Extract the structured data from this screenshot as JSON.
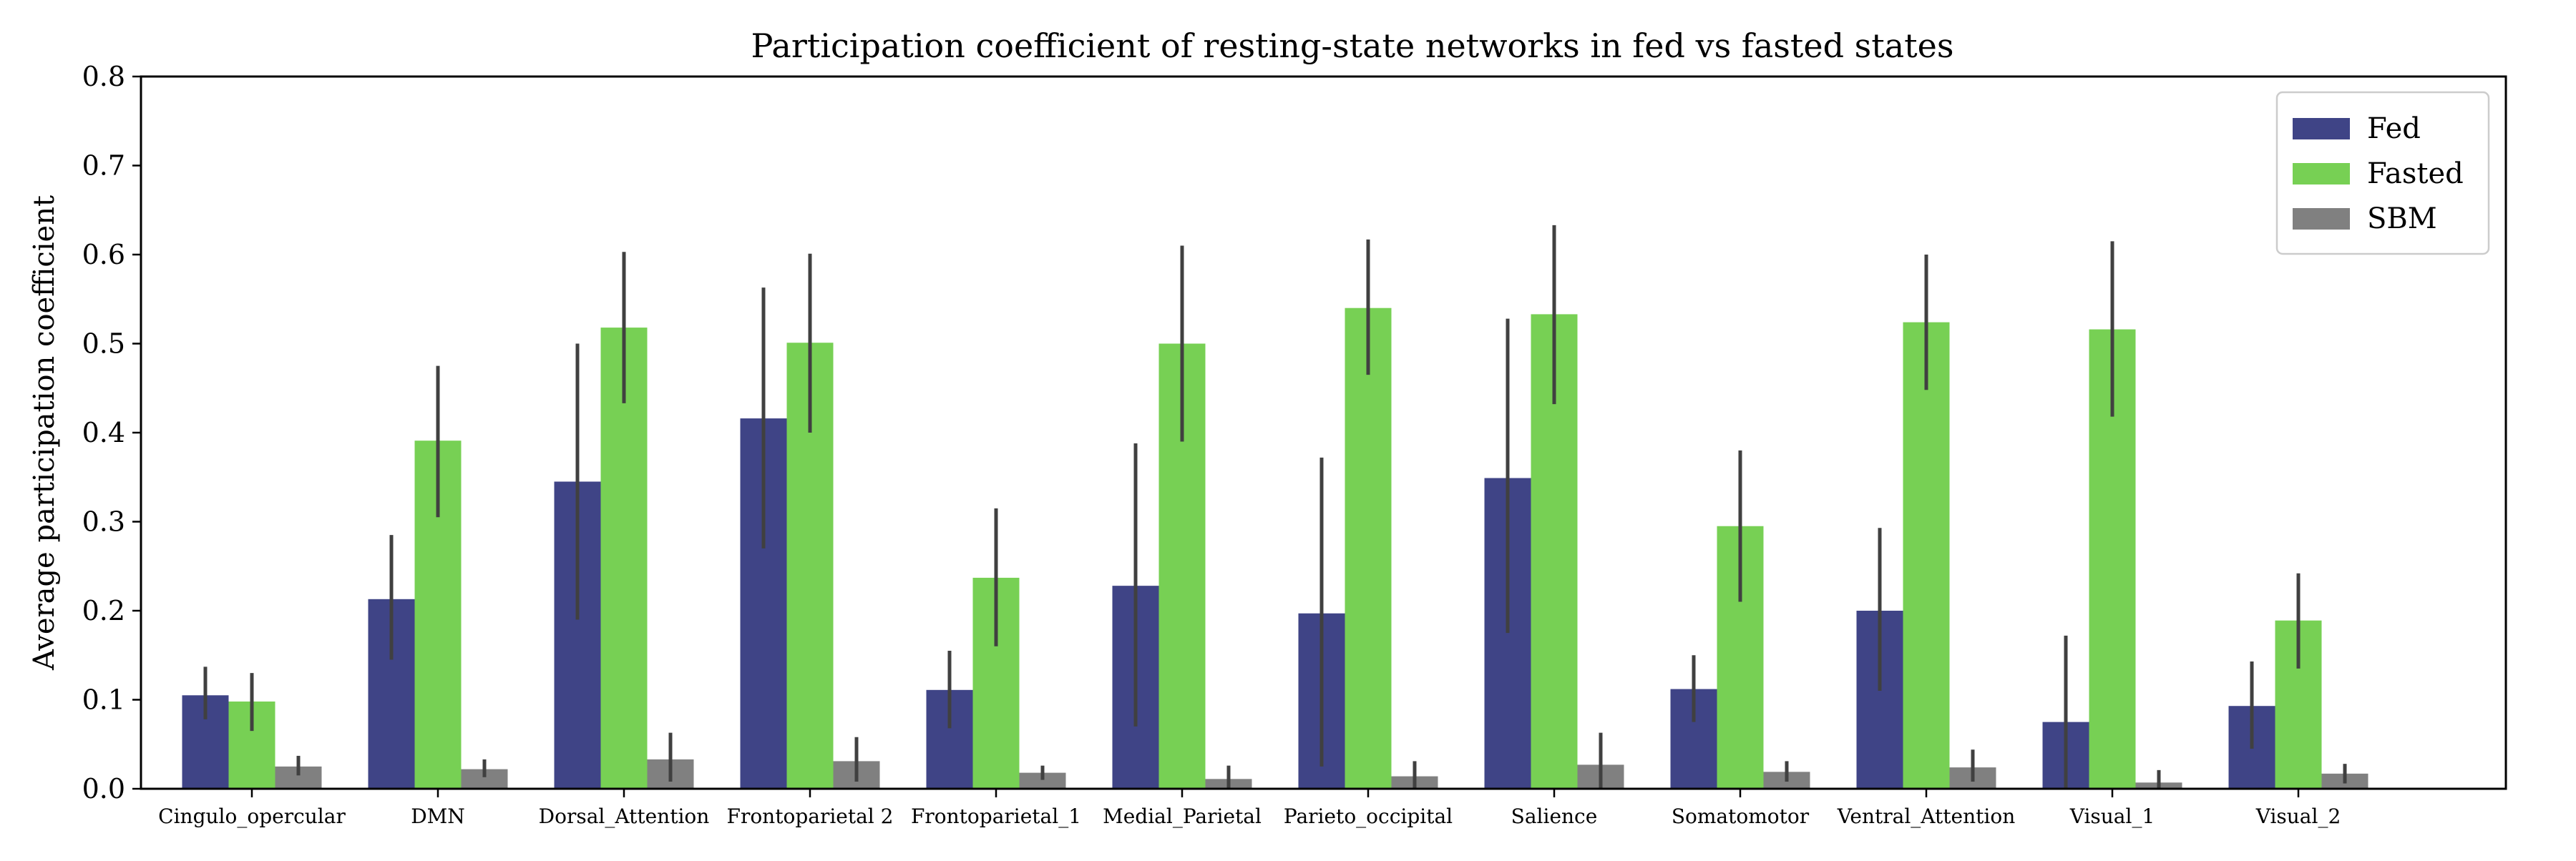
{
  "chart_data": {
    "type": "bar",
    "title": "Participation coefficient of resting-state networks in fed vs fasted states",
    "xlabel": "",
    "ylabel": "Average participation coefficient",
    "ylim": [
      0,
      0.8
    ],
    "yticks": [
      "0.0",
      "0.1",
      "0.2",
      "0.3",
      "0.4",
      "0.5",
      "0.6",
      "0.7",
      "0.8"
    ],
    "grid": false,
    "legend_position": "top-right",
    "categories": [
      "Cingulo_opercular",
      "DMN",
      "Dorsal_Attention",
      "Frontoparietal 2",
      "Frontoparietal_1",
      "Medial_Parietal",
      "Parieto_occipital",
      "Salience",
      "Somatomotor",
      "Ventral_Attention",
      "Visual_1",
      "Visual_2"
    ],
    "series": [
      {
        "name": "Fed",
        "color": "#3f4486",
        "values": [
          0.105,
          0.213,
          0.345,
          0.416,
          0.111,
          0.228,
          0.197,
          0.349,
          0.112,
          0.2,
          0.075,
          0.093
        ],
        "err_low": [
          0.078,
          0.145,
          0.19,
          0.27,
          0.068,
          0.07,
          0.025,
          0.175,
          0.075,
          0.11,
          0.0,
          0.045
        ],
        "err_high": [
          0.137,
          0.285,
          0.5,
          0.563,
          0.155,
          0.388,
          0.372,
          0.528,
          0.15,
          0.293,
          0.172,
          0.143
        ]
      },
      {
        "name": "Fasted",
        "color": "#77d054",
        "values": [
          0.098,
          0.391,
          0.518,
          0.501,
          0.237,
          0.5,
          0.54,
          0.533,
          0.295,
          0.524,
          0.516,
          0.189
        ],
        "err_low": [
          0.065,
          0.305,
          0.433,
          0.4,
          0.16,
          0.39,
          0.465,
          0.432,
          0.21,
          0.448,
          0.418,
          0.135
        ],
        "err_high": [
          0.13,
          0.475,
          0.603,
          0.601,
          0.315,
          0.61,
          0.617,
          0.633,
          0.38,
          0.6,
          0.615,
          0.242
        ]
      },
      {
        "name": "SBM",
        "color": "#808080",
        "values": [
          0.025,
          0.022,
          0.033,
          0.031,
          0.018,
          0.011,
          0.014,
          0.027,
          0.019,
          0.024,
          0.007,
          0.017
        ],
        "err_low": [
          0.015,
          0.013,
          0.008,
          0.008,
          0.01,
          0.0,
          0.0,
          0.0,
          0.008,
          0.008,
          0.0,
          0.006
        ],
        "err_high": [
          0.037,
          0.033,
          0.063,
          0.058,
          0.026,
          0.026,
          0.031,
          0.063,
          0.031,
          0.044,
          0.021,
          0.028
        ]
      }
    ]
  }
}
